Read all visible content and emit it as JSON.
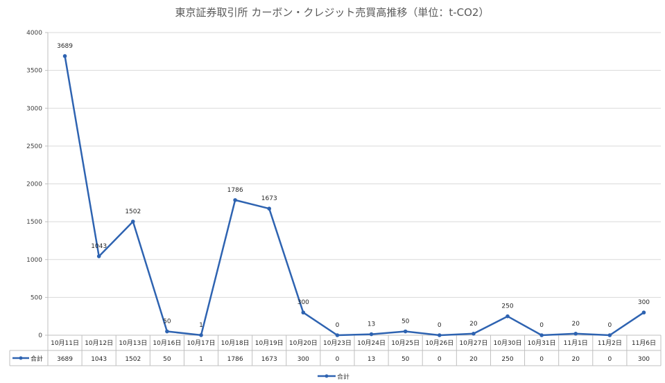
{
  "chart_data": {
    "type": "line",
    "title": "東京証券取引所 カーボン・クレジット売買高推移（単位：t-CO2）",
    "categories": [
      "10月11日",
      "10月12日",
      "10月13日",
      "10月16日",
      "10月17日",
      "10月18日",
      "10月19日",
      "10月20日",
      "10月23日",
      "10月24日",
      "10月25日",
      "10月26日",
      "10月27日",
      "10月30日",
      "10月31日",
      "11月1日",
      "11月2日",
      "11月6日"
    ],
    "series": [
      {
        "name": "合計",
        "values": [
          3689,
          1043,
          1502,
          50,
          1,
          1786,
          1673,
          300,
          0,
          13,
          50,
          0,
          20,
          250,
          0,
          20,
          0,
          300
        ]
      }
    ],
    "ylim": [
      0,
      4000
    ],
    "yticks": [
      0,
      500,
      1000,
      1500,
      2000,
      2500,
      3000,
      3500,
      4000
    ],
    "grid": true,
    "data_table": true,
    "legend_position": "bottom",
    "colors": {
      "series": "#2e63b1",
      "grid": "#d9d9d9",
      "axis": "#bfbfbf"
    }
  }
}
